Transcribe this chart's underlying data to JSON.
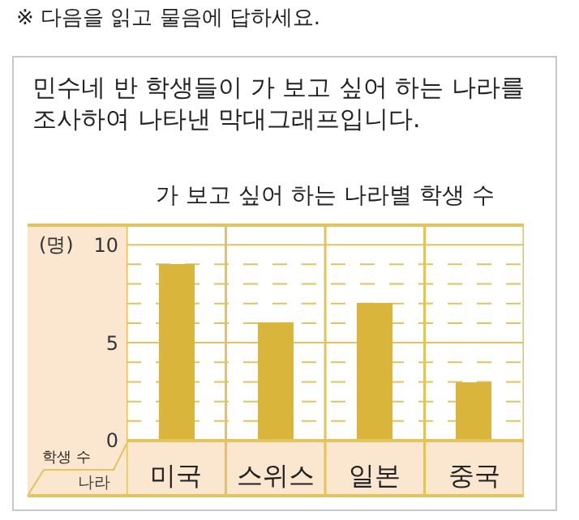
{
  "chart_data": {
    "type": "bar",
    "title": "가 보고 싶어 하는 나라별 학생 수",
    "annotations": [
      "※ 다음을 읽고 물음에 답하세요.",
      "민수네 반 학생들이 가 보고 싶어 하는 나라를\n조사하여 나타낸 막대그래프입니다.",
      "학생 수"
    ],
    "xlabel": "나라",
    "ylabel": "(명)",
    "categories": [
      "미국",
      "스위스",
      "일본",
      "중국"
    ],
    "values": [
      9,
      6,
      7,
      3
    ],
    "color": "#d9b53c",
    "ylim": [
      0,
      11
    ],
    "yticks": [
      0,
      {
        "value": 1,
        "label": null
      },
      {
        "value": 2,
        "label": null
      },
      {
        "value": 3,
        "label": null
      },
      {
        "value": 4,
        "label": null
      },
      5,
      {
        "value": 6,
        "label": null
      },
      {
        "value": 7,
        "label": null
      },
      {
        "value": 8,
        "label": null
      },
      {
        "value": 9,
        "label": null
      },
      10
    ],
    "grid": "y"
  }
}
